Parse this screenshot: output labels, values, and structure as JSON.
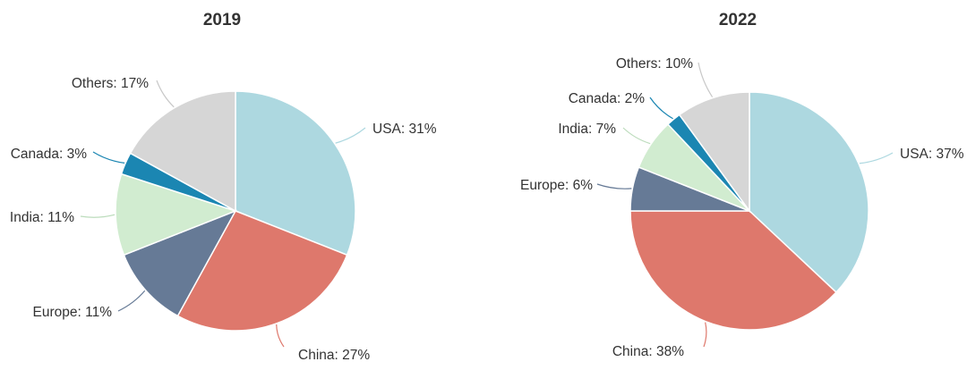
{
  "chart_data": [
    {
      "type": "pie",
      "title": "2019",
      "slices": [
        {
          "label": "USA",
          "value": 31,
          "color": "#add8e0"
        },
        {
          "label": "China",
          "value": 27,
          "color": "#de786c"
        },
        {
          "label": "Europe",
          "value": 11,
          "color": "#667a96"
        },
        {
          "label": "India",
          "value": 11,
          "color": "#d1ecd0"
        },
        {
          "label": "Canada",
          "value": 3,
          "color": "#1b86b2"
        },
        {
          "label": "Others",
          "value": 17,
          "color": "#d6d6d6"
        }
      ],
      "text": {
        "title": "2019",
        "labels": [
          "USA: 31%",
          "China: 27%",
          "Europe: 11%",
          "India: 11%",
          "Canada: 3%",
          "Others: 17%"
        ]
      }
    },
    {
      "type": "pie",
      "title": "2022",
      "slices": [
        {
          "label": "USA",
          "value": 37,
          "color": "#add8e0"
        },
        {
          "label": "China",
          "value": 38,
          "color": "#de786c"
        },
        {
          "label": "Europe",
          "value": 6,
          "color": "#667a96"
        },
        {
          "label": "India",
          "value": 7,
          "color": "#d1ecd0"
        },
        {
          "label": "Canada",
          "value": 2,
          "color": "#1b86b2"
        },
        {
          "label": "Others",
          "value": 10,
          "color": "#d6d6d6"
        }
      ],
      "text": {
        "title": "2022",
        "labels": [
          "USA: 37%",
          "China: 38%",
          "Europe: 6%",
          "India: 7%",
          "Canada: 2%",
          "Others: 10%"
        ]
      }
    }
  ]
}
